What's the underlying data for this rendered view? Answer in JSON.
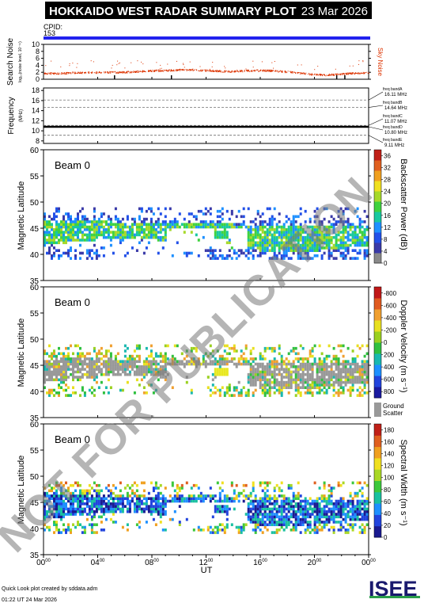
{
  "header": {
    "title": "HOKKAIDO WEST RADAR SUMMARY PLOT",
    "date": "23 Mar 2026",
    "cpid_label": "CPID:",
    "cpid_value": "153"
  },
  "watermark": "NOT FOR PUBLICATION",
  "footer": {
    "line1": "Quick Look plot created by sddata.adm",
    "line2": "01:22 UT 24 Mar 2026",
    "logo": "ISEE"
  },
  "colors": {
    "cpid_bar": "#2222ee",
    "sky_noise": "#dd3300",
    "ground_scatter": "#999999"
  },
  "chart_data": [
    {
      "type": "line",
      "id": "noise",
      "ylabel": "Search Noise",
      "ylabel_units": "log₁₀(noise level, 10⁻¹¹)",
      "yticks": [
        "0",
        "2",
        "4",
        "6",
        "8",
        "10"
      ],
      "ylim": [
        0,
        10
      ],
      "series": [
        {
          "name": "Sky Noise",
          "x": [
            0,
            1,
            2,
            3,
            4,
            5,
            6,
            7,
            8,
            9,
            10,
            11,
            12,
            13,
            14,
            15,
            16,
            17,
            18,
            19,
            20,
            21,
            22,
            23,
            24
          ],
          "values": [
            1.8,
            1.7,
            1.9,
            2.0,
            2.0,
            2.1,
            2.1,
            2.3,
            2.5,
            2.6,
            2.8,
            2.8,
            2.6,
            2.4,
            2.3,
            2.5,
            2.6,
            2.5,
            2.2,
            1.8,
            1.4,
            1.3,
            1.6,
            1.8,
            1.9
          ]
        }
      ]
    },
    {
      "type": "line",
      "id": "frequency",
      "ylabel": "Frequency",
      "ylabel_units": "(MHz)",
      "yticks": [
        "8",
        "10",
        "12",
        "14",
        "16",
        "18"
      ],
      "ylim": [
        7.5,
        18.5
      ],
      "bands": [
        {
          "label": "freq bandA",
          "value": 16.11,
          "text": "16.11 MHz"
        },
        {
          "label": "freq bandB",
          "value": 14.64,
          "text": "14.64 MHz"
        },
        {
          "label": "freq bandC",
          "value": 11.07,
          "text": "11.07 MHz"
        },
        {
          "label": "freq bandD",
          "value": 10.8,
          "text": "10.80 MHz"
        },
        {
          "label": "freq bandE",
          "value": 9.11,
          "text": "9.11 MHz"
        }
      ],
      "operating_frequency": 10.8
    },
    {
      "type": "heatmap",
      "id": "power",
      "beam": "Beam  0",
      "ylabel": "Magnetic Latitude",
      "yticks": [
        "35",
        "40",
        "45",
        "50",
        "55",
        "60"
      ],
      "ylim": [
        35,
        60
      ],
      "colorbar_label": "Backscatter Power (dB)",
      "colorbar_ticks": [
        "0",
        "4",
        "8",
        "12",
        "16",
        "20",
        "24",
        "28",
        "32",
        "36"
      ],
      "colorbar_range": [
        0,
        38
      ]
    },
    {
      "type": "heatmap",
      "id": "velocity",
      "beam": "Beam  0",
      "ylabel": "Magnetic Latitude",
      "yticks": [
        "35",
        "40",
        "45",
        "50",
        "55",
        "60"
      ],
      "ylim": [
        35,
        60
      ],
      "colorbar_label": "Doppler Velocity (m s⁻¹)",
      "colorbar_ticks": [
        "800",
        "600",
        "400",
        "200",
        "0",
        "-200",
        "-400",
        "-600",
        "-800"
      ],
      "colorbar_range": [
        900,
        -900
      ],
      "ground_scatter_label": [
        "Ground",
        "Scatter"
      ]
    },
    {
      "type": "heatmap",
      "id": "width",
      "beam": "Beam  0",
      "ylabel": "Magnetic Latitude",
      "yticks": [
        "35",
        "40",
        "45",
        "50",
        "55",
        "60"
      ],
      "ylim": [
        35,
        60
      ],
      "colorbar_label": "Spectral Width (m s⁻¹)",
      "colorbar_ticks": [
        "0",
        "20",
        "40",
        "60",
        "80",
        "100",
        "120",
        "140",
        "160",
        "180"
      ],
      "colorbar_range": [
        0,
        190
      ]
    }
  ],
  "xaxis": {
    "label": "UT",
    "ticks": [
      {
        "h": "00",
        "m": "00"
      },
      {
        "h": "04",
        "m": "00"
      },
      {
        "h": "08",
        "m": "00"
      },
      {
        "h": "12",
        "m": "00"
      },
      {
        "h": "16",
        "m": "00"
      },
      {
        "h": "20",
        "m": "00"
      },
      {
        "h": "00",
        "m": "00"
      }
    ],
    "xlim": [
      0,
      24
    ]
  }
}
